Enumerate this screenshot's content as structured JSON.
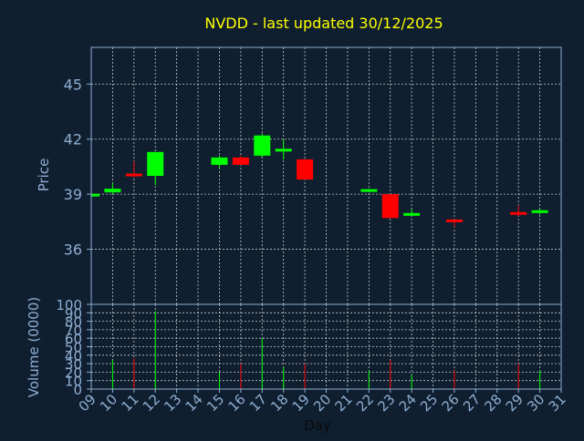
{
  "chart_data": {
    "type": "candlestick",
    "title": "NVDD - last updated 30/12/2025",
    "price_panel": {
      "ylabel": "Price",
      "ylim": [
        33,
        47
      ],
      "yticks": [
        36,
        39,
        42,
        45
      ]
    },
    "volume_panel": {
      "ylabel": "Volume (0000)",
      "ylim": [
        0,
        100
      ],
      "yticks": [
        0,
        10,
        20,
        30,
        40,
        50,
        60,
        70,
        80,
        90,
        100
      ]
    },
    "xlabel": "Day",
    "xlim": [
      9,
      31
    ],
    "xticks": [
      "09",
      "10",
      "11",
      "12",
      "13",
      "14",
      "15",
      "16",
      "17",
      "18",
      "19",
      "20",
      "21",
      "22",
      "23",
      "24",
      "25",
      "26",
      "27",
      "28",
      "29",
      "30",
      "31"
    ],
    "grid": true,
    "colors": {
      "background": "#0f1f30",
      "up": "#00ff00",
      "down": "#ff0000",
      "title": "#ffff00",
      "axis_text": "#8eaed0",
      "frame": "#8eaed0",
      "grid": "#ffffff"
    },
    "candles": [
      {
        "day": 9,
        "open": 38.9,
        "high": 39.1,
        "low": 38.8,
        "close": 39.0,
        "volume": 0
      },
      {
        "day": 10,
        "open": 39.1,
        "high": 39.6,
        "low": 39.0,
        "close": 39.3,
        "volume": 34
      },
      {
        "day": 11,
        "open": 40.1,
        "high": 40.8,
        "low": 39.9,
        "close": 40.0,
        "volume": 36
      },
      {
        "day": 12,
        "open": 40.0,
        "high": 41.3,
        "low": 39.5,
        "close": 41.3,
        "volume": 92
      },
      {
        "day": 15,
        "open": 40.6,
        "high": 41.1,
        "low": 40.4,
        "close": 41.0,
        "volume": 20
      },
      {
        "day": 16,
        "open": 41.0,
        "high": 41.1,
        "low": 40.6,
        "close": 40.6,
        "volume": 30
      },
      {
        "day": 17,
        "open": 41.1,
        "high": 42.3,
        "low": 41.0,
        "close": 42.2,
        "volume": 60
      },
      {
        "day": 18,
        "open": 41.4,
        "high": 42.0,
        "low": 40.9,
        "close": 41.4,
        "volume": 26
      },
      {
        "day": 19,
        "open": 40.9,
        "high": 40.9,
        "low": 39.8,
        "close": 39.8,
        "volume": 30
      },
      {
        "day": 22,
        "open": 39.2,
        "high": 39.3,
        "low": 39.1,
        "close": 39.2,
        "volume": 22
      },
      {
        "day": 23,
        "open": 39.0,
        "high": 39.0,
        "low": 37.7,
        "close": 37.7,
        "volume": 34
      },
      {
        "day": 24,
        "open": 37.9,
        "high": 38.2,
        "low": 37.8,
        "close": 37.9,
        "volume": 17
      },
      {
        "day": 26,
        "open": 37.6,
        "high": 37.6,
        "low": 37.2,
        "close": 37.5,
        "volume": 22
      },
      {
        "day": 29,
        "open": 38.0,
        "high": 38.4,
        "low": 37.8,
        "close": 37.9,
        "volume": 30
      },
      {
        "day": 30,
        "open": 38.0,
        "high": 38.2,
        "low": 37.9,
        "close": 38.1,
        "volume": 22
      }
    ]
  }
}
